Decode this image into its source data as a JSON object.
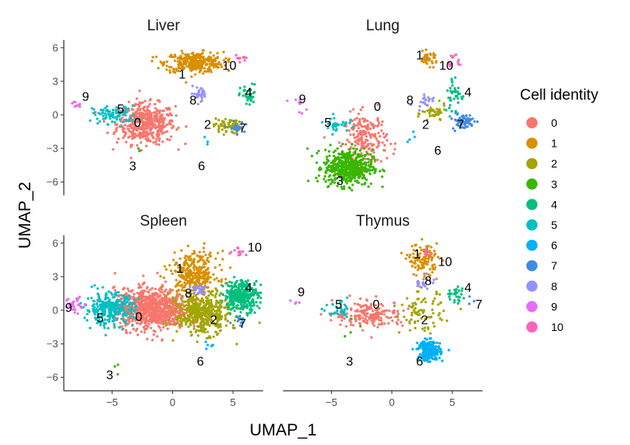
{
  "chart_data": {
    "type": "scatter",
    "xlabel": "UMAP_1",
    "ylabel": "UMAP_2",
    "xlim": [
      -9,
      7.5
    ],
    "ylim": [
      -7.2,
      6.7
    ],
    "x_ticks": [
      -5,
      0,
      5
    ],
    "y_ticks": [
      6,
      3,
      0,
      -3,
      -6
    ],
    "x_tick_labels": [
      "−5",
      "0",
      "5"
    ],
    "y_tick_labels": [
      "6",
      "3",
      "0",
      "−3",
      "−6"
    ],
    "legend": {
      "title": "Cell identity",
      "entries": [
        "0",
        "1",
        "2",
        "3",
        "4",
        "5",
        "6",
        "7",
        "8",
        "9",
        "10"
      ],
      "colors": [
        "#F8766D",
        "#D89000",
        "#A3A500",
        "#39B600",
        "#00BF7D",
        "#00BFC4",
        "#00B0F6",
        "#3F8CE6",
        "#9590FF",
        "#E76BF3",
        "#FF62BC"
      ],
      "placement": "right"
    },
    "panels": [
      {
        "title": "Liver",
        "clusters": [
          {
            "id": "0",
            "cx": -2.2,
            "cy": -0.8,
            "sx": 1.2,
            "sy": 0.9,
            "n": 450,
            "label": [
              -2.9,
              -0.7
            ]
          },
          {
            "id": "1",
            "cx": 1.8,
            "cy": 4.7,
            "sx": 1.2,
            "sy": 0.45,
            "n": 320,
            "label": [
              0.8,
              3.6
            ]
          },
          {
            "id": "2",
            "cx": 4.5,
            "cy": -1.0,
            "sx": 0.55,
            "sy": 0.35,
            "n": 60,
            "label": [
              2.9,
              -0.9
            ]
          },
          {
            "id": "3",
            "cx": -3.0,
            "cy": -3.2,
            "sx": 0.2,
            "sy": 0.2,
            "n": 2,
            "label": [
              -3.3,
              -4.6
            ]
          },
          {
            "id": "4",
            "cx": 6.3,
            "cy": 1.7,
            "sx": 0.35,
            "sy": 0.5,
            "n": 40,
            "label": [
              6.3,
              2.0
            ]
          },
          {
            "id": "5",
            "cx": -4.8,
            "cy": 0.0,
            "sx": 0.9,
            "sy": 0.4,
            "n": 90,
            "label": [
              -4.3,
              0.5
            ]
          },
          {
            "id": "6",
            "cx": 2.8,
            "cy": -2.2,
            "sx": 0.25,
            "sy": 0.25,
            "n": 3,
            "label": [
              2.4,
              -4.6
            ]
          },
          {
            "id": "7",
            "cx": 5.3,
            "cy": -1.2,
            "sx": 0.3,
            "sy": 0.3,
            "n": 20,
            "label": [
              5.8,
              -1.2
            ]
          },
          {
            "id": "8",
            "cx": 2.3,
            "cy": 1.9,
            "sx": 0.4,
            "sy": 0.3,
            "n": 30,
            "label": [
              1.7,
              1.3
            ]
          },
          {
            "id": "9",
            "cx": -8.1,
            "cy": 0.9,
            "sx": 0.25,
            "sy": 0.15,
            "n": 8,
            "label": [
              -7.2,
              1.6
            ]
          },
          {
            "id": "10",
            "cx": 5.7,
            "cy": 5.1,
            "sx": 0.25,
            "sy": 0.15,
            "n": 10,
            "label": [
              4.7,
              4.4
            ]
          }
        ]
      },
      {
        "title": "Lung",
        "clusters": [
          {
            "id": "0",
            "cx": -2.2,
            "cy": -2.2,
            "sx": 0.9,
            "sy": 1.2,
            "n": 200,
            "label": [
              -1.2,
              0.7
            ]
          },
          {
            "id": "1",
            "cx": 3.0,
            "cy": 5.0,
            "sx": 0.4,
            "sy": 0.3,
            "n": 40,
            "label": [
              2.3,
              5.3
            ]
          },
          {
            "id": "2",
            "cx": 3.5,
            "cy": 0.1,
            "sx": 0.5,
            "sy": 0.4,
            "n": 40,
            "label": [
              2.8,
              -0.9
            ]
          },
          {
            "id": "3",
            "cx": -3.6,
            "cy": -4.7,
            "sx": 1.0,
            "sy": 0.8,
            "n": 500,
            "label": [
              -4.3,
              -5.9
            ]
          },
          {
            "id": "4",
            "cx": 5.2,
            "cy": 1.8,
            "sx": 0.4,
            "sy": 0.9,
            "n": 40,
            "label": [
              6.3,
              2.0
            ]
          },
          {
            "id": "5",
            "cx": -4.6,
            "cy": -0.8,
            "sx": 0.5,
            "sy": 0.35,
            "n": 35,
            "label": [
              -5.3,
              -0.7
            ]
          },
          {
            "id": "6",
            "cx": 1.5,
            "cy": -1.9,
            "sx": 0.25,
            "sy": 0.25,
            "n": 4,
            "label": [
              3.8,
              -3.2
            ]
          },
          {
            "id": "7",
            "cx": 5.9,
            "cy": -0.6,
            "sx": 0.45,
            "sy": 0.35,
            "n": 70,
            "label": [
              5.7,
              -0.9
            ]
          },
          {
            "id": "8",
            "cx": 2.7,
            "cy": 1.3,
            "sx": 0.4,
            "sy": 0.3,
            "n": 20,
            "label": [
              1.5,
              1.3
            ]
          },
          {
            "id": "9",
            "cx": -7.8,
            "cy": 0.8,
            "sx": 0.35,
            "sy": 0.3,
            "n": 8,
            "label": [
              -7.4,
              1.4
            ]
          },
          {
            "id": "10",
            "cx": 5.2,
            "cy": 4.8,
            "sx": 0.4,
            "sy": 0.35,
            "n": 12,
            "label": [
              4.5,
              4.4
            ]
          }
        ]
      },
      {
        "title": "Spleen",
        "clusters": [
          {
            "id": "0",
            "cx": -1.8,
            "cy": 0.1,
            "sx": 1.5,
            "sy": 0.9,
            "n": 900,
            "label": [
              -2.8,
              -0.6
            ]
          },
          {
            "id": "1",
            "cx": 1.8,
            "cy": 3.2,
            "sx": 1.0,
            "sy": 1.0,
            "n": 320,
            "label": [
              0.6,
              3.7
            ]
          },
          {
            "id": "2",
            "cx": 2.5,
            "cy": -0.3,
            "sx": 1.1,
            "sy": 0.9,
            "n": 450,
            "label": [
              3.4,
              -0.9
            ]
          },
          {
            "id": "3",
            "cx": -4.5,
            "cy": -5.2,
            "sx": 0.25,
            "sy": 0.3,
            "n": 3,
            "label": [
              -5.2,
              -5.8
            ]
          },
          {
            "id": "4",
            "cx": 5.7,
            "cy": 1.3,
            "sx": 0.7,
            "sy": 0.7,
            "n": 320,
            "label": [
              6.3,
              2.0
            ]
          },
          {
            "id": "5",
            "cx": -5.2,
            "cy": 0.1,
            "sx": 1.0,
            "sy": 0.7,
            "n": 300,
            "label": [
              -6.0,
              -0.7
            ]
          },
          {
            "id": "6",
            "cx": 3.0,
            "cy": -3.2,
            "sx": 0.25,
            "sy": 0.25,
            "n": 5,
            "label": [
              2.3,
              -4.6
            ]
          },
          {
            "id": "7",
            "cx": 5.5,
            "cy": -0.6,
            "sx": 0.3,
            "sy": 0.3,
            "n": 10,
            "label": [
              5.8,
              -1.2
            ]
          },
          {
            "id": "8",
            "cx": 2.2,
            "cy": 1.8,
            "sx": 0.4,
            "sy": 0.3,
            "n": 30,
            "label": [
              1.3,
              1.5
            ]
          },
          {
            "id": "9",
            "cx": -8.0,
            "cy": 0.5,
            "sx": 0.45,
            "sy": 0.4,
            "n": 30,
            "label": [
              -8.6,
              0.2
            ]
          },
          {
            "id": "10",
            "cx": 5.5,
            "cy": 5.3,
            "sx": 0.3,
            "sy": 0.2,
            "n": 12,
            "label": [
              6.8,
              5.6
            ]
          }
        ]
      },
      {
        "title": "Thymus",
        "clusters": [
          {
            "id": "0",
            "cx": -1.8,
            "cy": -0.4,
            "sx": 1.5,
            "sy": 0.6,
            "n": 180,
            "label": [
              -1.3,
              0.5
            ]
          },
          {
            "id": "1",
            "cx": 2.6,
            "cy": 4.5,
            "sx": 0.6,
            "sy": 0.7,
            "n": 120,
            "label": [
              2.1,
              5.0
            ]
          },
          {
            "id": "2",
            "cx": 2.5,
            "cy": -0.2,
            "sx": 0.9,
            "sy": 0.9,
            "n": 80,
            "label": [
              2.7,
              -0.9
            ]
          },
          {
            "id": "3",
            "cx": -3.2,
            "cy": -2.2,
            "sx": 0.5,
            "sy": 0.5,
            "n": 4,
            "label": [
              -3.5,
              -4.6
            ]
          },
          {
            "id": "4",
            "cx": 5.3,
            "cy": 1.4,
            "sx": 0.5,
            "sy": 0.4,
            "n": 30,
            "label": [
              6.3,
              2.0
            ]
          },
          {
            "id": "5",
            "cx": -4.3,
            "cy": -0.2,
            "sx": 0.5,
            "sy": 0.4,
            "n": 30,
            "label": [
              -4.4,
              0.5
            ]
          },
          {
            "id": "6",
            "cx": 3.1,
            "cy": -3.6,
            "sx": 0.45,
            "sy": 0.45,
            "n": 250,
            "label": [
              2.3,
              -4.6
            ]
          },
          {
            "id": "7",
            "cx": 6.4,
            "cy": 0.7,
            "sx": 0.3,
            "sy": 0.3,
            "n": 3,
            "label": [
              7.2,
              0.5
            ]
          },
          {
            "id": "8",
            "cx": 2.7,
            "cy": 2.5,
            "sx": 0.4,
            "sy": 0.3,
            "n": 20,
            "label": [
              3.0,
              2.6
            ]
          },
          {
            "id": "9",
            "cx": -8.3,
            "cy": 0.8,
            "sx": 0.3,
            "sy": 0.2,
            "n": 4,
            "label": [
              -7.5,
              1.6
            ]
          },
          {
            "id": "10",
            "cx": 3.3,
            "cy": 5.2,
            "sx": 0.3,
            "sy": 0.2,
            "n": 6,
            "label": [
              4.4,
              4.3
            ]
          }
        ]
      }
    ]
  }
}
